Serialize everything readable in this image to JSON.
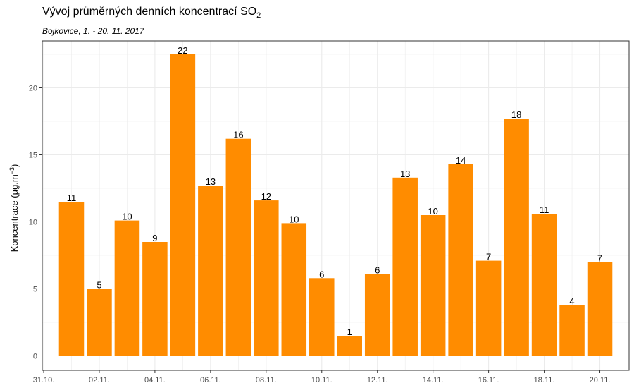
{
  "header": {
    "title_main": "Vývoj průměrných denních koncentrací SO",
    "title_sub": "2",
    "subtitle": "Bojkovice, 1. - 20. 11. 2017"
  },
  "axis": {
    "ylabel_main": "Koncentrace  (µg.m",
    "ylabel_exp": "−3",
    "ylabel_close": ")"
  },
  "colors": {
    "bar": "#FF8C00",
    "grid": "#ebebeb",
    "border": "#333333"
  },
  "chart_data": {
    "type": "bar",
    "title": "Vývoj průměrných denních koncentrací SO2",
    "subtitle": "Bojkovice, 1. - 20. 11. 2017",
    "xlabel": "",
    "ylabel": "Koncentrace (µg.m−3)",
    "dates": [
      "2017-11-01",
      "2017-11-02",
      "2017-11-03",
      "2017-11-04",
      "2017-11-05",
      "2017-11-06",
      "2017-11-07",
      "2017-11-08",
      "2017-11-09",
      "2017-11-10",
      "2017-11-11",
      "2017-11-12",
      "2017-11-13",
      "2017-11-14",
      "2017-11-15",
      "2017-11-16",
      "2017-11-17",
      "2017-11-18",
      "2017-11-19",
      "2017-11-20"
    ],
    "values": [
      11.5,
      5.0,
      10.1,
      8.5,
      22.5,
      12.7,
      16.2,
      11.6,
      9.9,
      5.8,
      1.5,
      6.1,
      13.3,
      10.5,
      14.3,
      7.1,
      17.7,
      10.6,
      3.8,
      7.0
    ],
    "data_labels": [
      "11",
      "5",
      "10",
      "9",
      "22",
      "13",
      "16",
      "12",
      "10",
      "6",
      "1",
      "6",
      "13",
      "10",
      "14",
      "7",
      "18",
      "11",
      "4",
      "7"
    ],
    "x_tick_labels": [
      "31.10.",
      "02.11.",
      "04.11.",
      "06.11.",
      "08.11.",
      "10.11.",
      "12.11.",
      "14.11.",
      "16.11.",
      "18.11.",
      "20.11."
    ],
    "y_ticks": [
      0,
      5,
      10,
      15,
      20
    ],
    "xlim": [
      "2017-10-31",
      "2017-11-21"
    ],
    "ylim": [
      0,
      23.5
    ],
    "grid": true
  }
}
